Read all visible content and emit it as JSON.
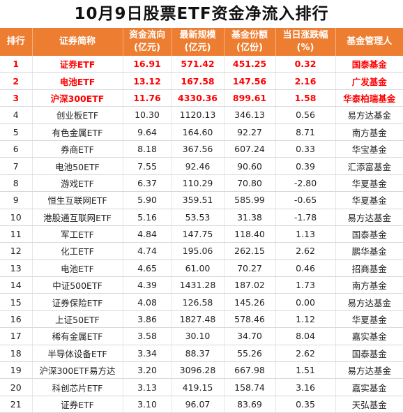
{
  "title": "10月9日股票ETF资金净流入排行",
  "colors": {
    "header_bg": "#ed7d31",
    "header_text": "#ffffff",
    "highlight_text": "#ff0000"
  },
  "headers": [
    "排行",
    "证券简称",
    "资金流向\n(亿元)",
    "最新规模\n(亿元)",
    "基金份额\n(亿份)",
    "当日涨跌幅\n(%)",
    "基金管理人"
  ],
  "rows": [
    [
      "1",
      "证券ETF",
      "16.91",
      "571.42",
      "451.25",
      "0.32",
      "国泰基金"
    ],
    [
      "2",
      "电池ETF",
      "13.12",
      "167.58",
      "147.56",
      "2.16",
      "广发基金"
    ],
    [
      "3",
      "沪深300ETF",
      "11.76",
      "4330.36",
      "899.61",
      "1.58",
      "华泰柏瑞基金"
    ],
    [
      "4",
      "创业板ETF",
      "10.30",
      "1120.13",
      "346.13",
      "0.56",
      "易方达基金"
    ],
    [
      "5",
      "有色金属ETF",
      "9.64",
      "164.60",
      "92.27",
      "8.71",
      "南方基金"
    ],
    [
      "6",
      "券商ETF",
      "8.18",
      "367.56",
      "607.24",
      "0.33",
      "华宝基金"
    ],
    [
      "7",
      "电池50ETF",
      "7.55",
      "92.46",
      "90.60",
      "0.39",
      "汇添富基金"
    ],
    [
      "8",
      "游戏ETF",
      "6.37",
      "110.29",
      "70.80",
      "-2.80",
      "华夏基金"
    ],
    [
      "9",
      "恒生互联网ETF",
      "5.90",
      "359.51",
      "585.99",
      "-0.65",
      "华夏基金"
    ],
    [
      "10",
      "港股通互联网ETF",
      "5.16",
      "53.53",
      "31.38",
      "-1.78",
      "易方达基金"
    ],
    [
      "11",
      "军工ETF",
      "4.84",
      "147.75",
      "118.40",
      "1.13",
      "国泰基金"
    ],
    [
      "12",
      "化工ETF",
      "4.74",
      "195.06",
      "262.15",
      "2.62",
      "鹏华基金"
    ],
    [
      "13",
      "电池ETF",
      "4.65",
      "61.00",
      "70.27",
      "0.46",
      "招商基金"
    ],
    [
      "14",
      "中证500ETF",
      "4.39",
      "1431.28",
      "187.02",
      "1.73",
      "南方基金"
    ],
    [
      "15",
      "证券保险ETF",
      "4.08",
      "126.58",
      "145.26",
      "0.00",
      "易方达基金"
    ],
    [
      "16",
      "上证50ETF",
      "3.86",
      "1827.48",
      "578.46",
      "1.12",
      "华夏基金"
    ],
    [
      "17",
      "稀有金属ETF",
      "3.58",
      "30.10",
      "34.70",
      "8.04",
      "嘉实基金"
    ],
    [
      "18",
      "半导体设备ETF",
      "3.34",
      "88.37",
      "55.26",
      "2.62",
      "国泰基金"
    ],
    [
      "19",
      "沪深300ETF易方达",
      "3.20",
      "3096.28",
      "667.98",
      "1.51",
      "易方达基金"
    ],
    [
      "20",
      "科创芯片ETF",
      "3.13",
      "419.15",
      "158.74",
      "3.16",
      "嘉实基金"
    ],
    [
      "21",
      "证券ETF",
      "3.10",
      "96.07",
      "83.69",
      "0.35",
      "天弘基金"
    ]
  ]
}
